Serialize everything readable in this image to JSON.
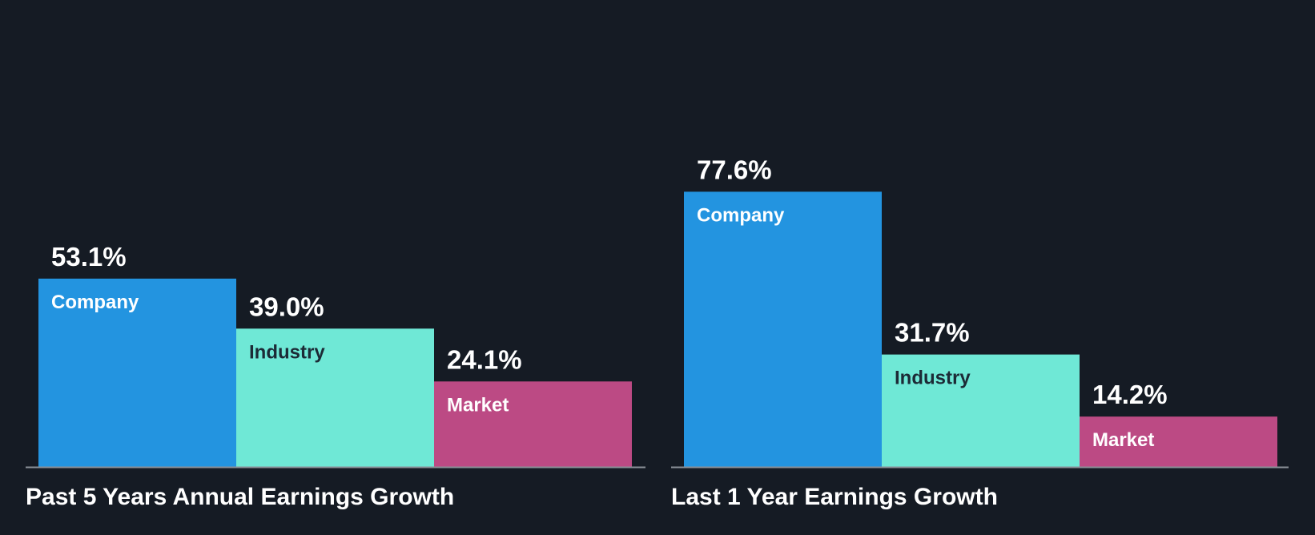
{
  "chart_data": [
    {
      "type": "bar",
      "title": "Past 5 Years Annual Earnings Growth",
      "categories": [
        "Company",
        "Industry",
        "Market"
      ],
      "values": [
        53.1,
        39.0,
        24.1
      ],
      "value_labels": [
        "53.1%",
        "39.0%",
        "24.1%"
      ],
      "unit": "%",
      "ylim": [
        0,
        90
      ],
      "grid": false,
      "legend": "none"
    },
    {
      "type": "bar",
      "title": "Last 1 Year Earnings Growth",
      "categories": [
        "Company",
        "Industry",
        "Market"
      ],
      "values": [
        77.6,
        31.7,
        14.2
      ],
      "value_labels": [
        "77.6%",
        "31.7%",
        "14.2%"
      ],
      "unit": "%",
      "ylim": [
        0,
        90
      ],
      "grid": false,
      "legend": "none"
    }
  ],
  "colors": {
    "background": "#151b24",
    "company": "#2394e0",
    "industry": "#6fe8d6",
    "market": "#bc4a84",
    "axis": "#8a9098",
    "value_text": "#ffffff",
    "company_label_text": "#ffffff",
    "industry_label_text": "#1c2a36",
    "market_label_text": "#ffffff"
  }
}
